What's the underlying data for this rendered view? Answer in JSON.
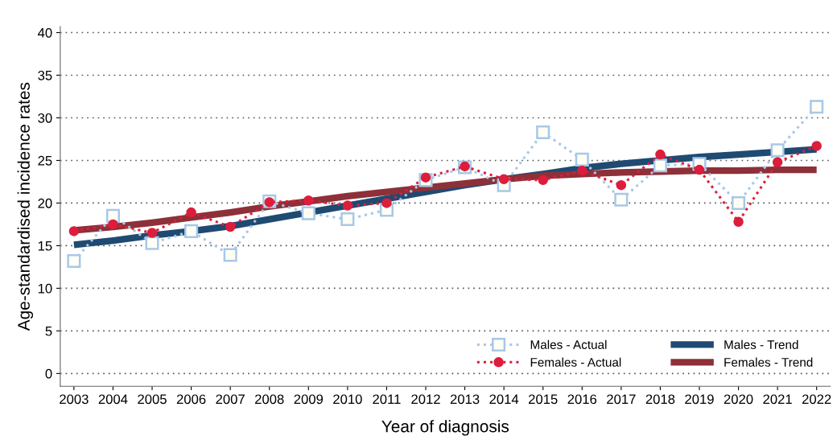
{
  "chart_data": {
    "type": "line",
    "xlabel": "Year of diagnosis",
    "ylabel": "Age-standardised incidence rates",
    "categories": [
      "2003",
      "2004",
      "2005",
      "2006",
      "2007",
      "2008",
      "2009",
      "2010",
      "2011",
      "2012",
      "2013",
      "2014",
      "2015",
      "2016",
      "2017",
      "2018",
      "2019",
      "2020",
      "2021",
      "2022"
    ],
    "ylim": [
      -1.5,
      40.7
    ],
    "yticks": [
      0,
      5,
      10,
      15,
      20,
      25,
      30,
      35,
      40
    ],
    "grid": "y",
    "legend": "bottom right",
    "series": [
      {
        "name": "Males - Actual",
        "color": "#a7c8e8",
        "marker": "square",
        "line_style": "dotted",
        "values": [
          13.2,
          18.5,
          15.3,
          16.7,
          13.9,
          20.2,
          18.8,
          18.1,
          19.2,
          22.7,
          24.2,
          22.1,
          28.3,
          25.1,
          20.4,
          24.4,
          24.6,
          20.0,
          26.2,
          31.3
        ]
      },
      {
        "name": "Females - Actual",
        "color": "#dc1e3c",
        "marker": "circle",
        "line_style": "dotted",
        "values": [
          16.7,
          17.5,
          16.5,
          18.9,
          17.2,
          20.1,
          20.3,
          19.7,
          20.0,
          23.0,
          24.3,
          22.8,
          22.7,
          23.8,
          22.1,
          25.7,
          23.9,
          17.8,
          24.8,
          26.7
        ]
      },
      {
        "name": "Males - Trend",
        "color": "#1f4a72",
        "marker": "none",
        "line_style": "solid",
        "values": [
          15.1,
          15.6,
          16.2,
          16.7,
          17.3,
          18.1,
          18.9,
          19.7,
          20.5,
          21.3,
          22.1,
          22.8,
          23.4,
          24.1,
          24.6,
          25.0,
          25.4,
          25.7,
          26.0,
          26.3
        ]
      },
      {
        "name": "Females - Trend",
        "color": "#8e3039",
        "marker": "none",
        "line_style": "solid",
        "values": [
          16.8,
          17.2,
          17.7,
          18.3,
          18.9,
          19.6,
          20.2,
          20.8,
          21.3,
          21.8,
          22.3,
          22.8,
          23.2,
          23.4,
          23.6,
          23.7,
          23.8,
          23.8,
          23.9,
          23.9
        ]
      }
    ]
  }
}
